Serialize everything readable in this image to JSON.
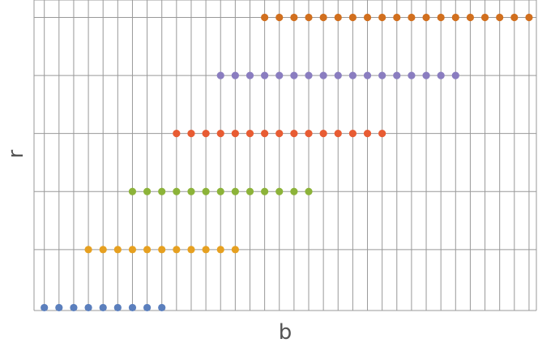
{
  "chart_data": {
    "type": "scatter",
    "title": "",
    "xlabel": "b",
    "ylabel": "r",
    "xlim": [
      -0.7,
      33.5
    ],
    "ylim": [
      -0.05,
      5.3
    ],
    "x_tick_values": [
      0,
      1,
      2,
      3,
      4,
      5,
      6,
      7,
      8,
      9,
      10,
      11,
      12,
      13,
      14,
      15,
      16,
      17,
      18,
      19,
      20,
      21,
      22,
      23,
      24,
      25,
      26,
      27,
      28,
      29,
      30,
      31,
      32,
      33
    ],
    "y_tick_values": [
      0,
      1,
      2,
      3,
      4,
      5
    ],
    "grid": true,
    "legend": "none",
    "series": [
      {
        "color": "#5b7fbd",
        "x": [
          0,
          1,
          2,
          3,
          4,
          5,
          6,
          7,
          8
        ],
        "y": [
          0,
          0,
          0,
          0,
          0,
          0,
          0,
          0,
          0
        ]
      },
      {
        "color": "#e6a020",
        "x": [
          3,
          4,
          5,
          6,
          7,
          8,
          9,
          10,
          11,
          12,
          13
        ],
        "y": [
          1,
          1,
          1,
          1,
          1,
          1,
          1,
          1,
          1,
          1,
          1
        ]
      },
      {
        "color": "#8cb339",
        "x": [
          6,
          7,
          8,
          9,
          10,
          11,
          12,
          13,
          14,
          15,
          16,
          17,
          18
        ],
        "y": [
          2,
          2,
          2,
          2,
          2,
          2,
          2,
          2,
          2,
          2,
          2,
          2,
          2
        ]
      },
      {
        "color": "#e85c33",
        "x": [
          9,
          10,
          11,
          12,
          13,
          14,
          15,
          16,
          17,
          18,
          19,
          20,
          21,
          22,
          23
        ],
        "y": [
          3,
          3,
          3,
          3,
          3,
          3,
          3,
          3,
          3,
          3,
          3,
          3,
          3,
          3,
          3
        ]
      },
      {
        "color": "#8a7dc0",
        "x": [
          12,
          13,
          14,
          15,
          16,
          17,
          18,
          19,
          20,
          21,
          22,
          23,
          24,
          25,
          26,
          27,
          28
        ],
        "y": [
          4,
          4,
          4,
          4,
          4,
          4,
          4,
          4,
          4,
          4,
          4,
          4,
          4,
          4,
          4,
          4,
          4
        ]
      },
      {
        "color": "#d16f1e",
        "x": [
          15,
          16,
          17,
          18,
          19,
          20,
          21,
          22,
          23,
          24,
          25,
          26,
          27,
          28,
          29,
          30,
          31,
          32,
          33
        ],
        "y": [
          5,
          5,
          5,
          5,
          5,
          5,
          5,
          5,
          5,
          5,
          5,
          5,
          5,
          5,
          5,
          5,
          5,
          5,
          5
        ]
      }
    ]
  }
}
